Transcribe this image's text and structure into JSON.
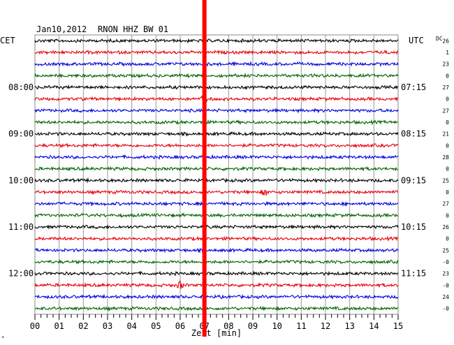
{
  "header": {
    "date": "Jan10,2012",
    "station": "RNON HHZ BW 01",
    "left_zone": "CET",
    "right_zone": "UTC",
    "dc_label": "DC"
  },
  "footer": {
    "x_label": "Zeit [min]"
  },
  "colors": {
    "trace_cycle": [
      "#000000",
      "#e8000b",
      "#0000e0",
      "#006400"
    ],
    "marker": "#ff0000",
    "grid": "#888888"
  },
  "chart_data": {
    "type": "line",
    "title": "Jan10,2012 RNON HHZ BW 01",
    "xlabel": "Zeit [min]",
    "x_ticks": [
      "00",
      "01",
      "02",
      "03",
      "04",
      "05",
      "06",
      "07",
      "08",
      "09",
      "10",
      "11",
      "12",
      "13",
      "14",
      "15"
    ],
    "xlim": [
      0,
      15
    ],
    "row_count": 24,
    "row_minutes": 15,
    "left_labels": [
      {
        "row": 4,
        "text": "08:00"
      },
      {
        "row": 8,
        "text": "09:00"
      },
      {
        "row": 12,
        "text": "10:00"
      },
      {
        "row": 16,
        "text": "11:00"
      },
      {
        "row": 20,
        "text": "12:00"
      }
    ],
    "right_labels": [
      {
        "row": 4,
        "text": "07:15"
      },
      {
        "row": 8,
        "text": "08:15"
      },
      {
        "row": 12,
        "text": "09:15"
      },
      {
        "row": 16,
        "text": "10:15"
      },
      {
        "row": 20,
        "text": "11:15"
      }
    ],
    "dc_values": [
      "26",
      "1",
      "23",
      "0",
      "27",
      "0",
      "27",
      "0",
      "21",
      "0",
      "28",
      "0",
      "25",
      "0",
      "27",
      "0",
      "26",
      "0",
      "25",
      "-0",
      "23",
      "-0",
      "24",
      "-0"
    ],
    "marker_minute": 7.0,
    "events": [
      {
        "row": 5,
        "minute": 7.0
      },
      {
        "row": 13,
        "minute": 9.5
      },
      {
        "row": 21,
        "minute": 6.0
      }
    ]
  }
}
